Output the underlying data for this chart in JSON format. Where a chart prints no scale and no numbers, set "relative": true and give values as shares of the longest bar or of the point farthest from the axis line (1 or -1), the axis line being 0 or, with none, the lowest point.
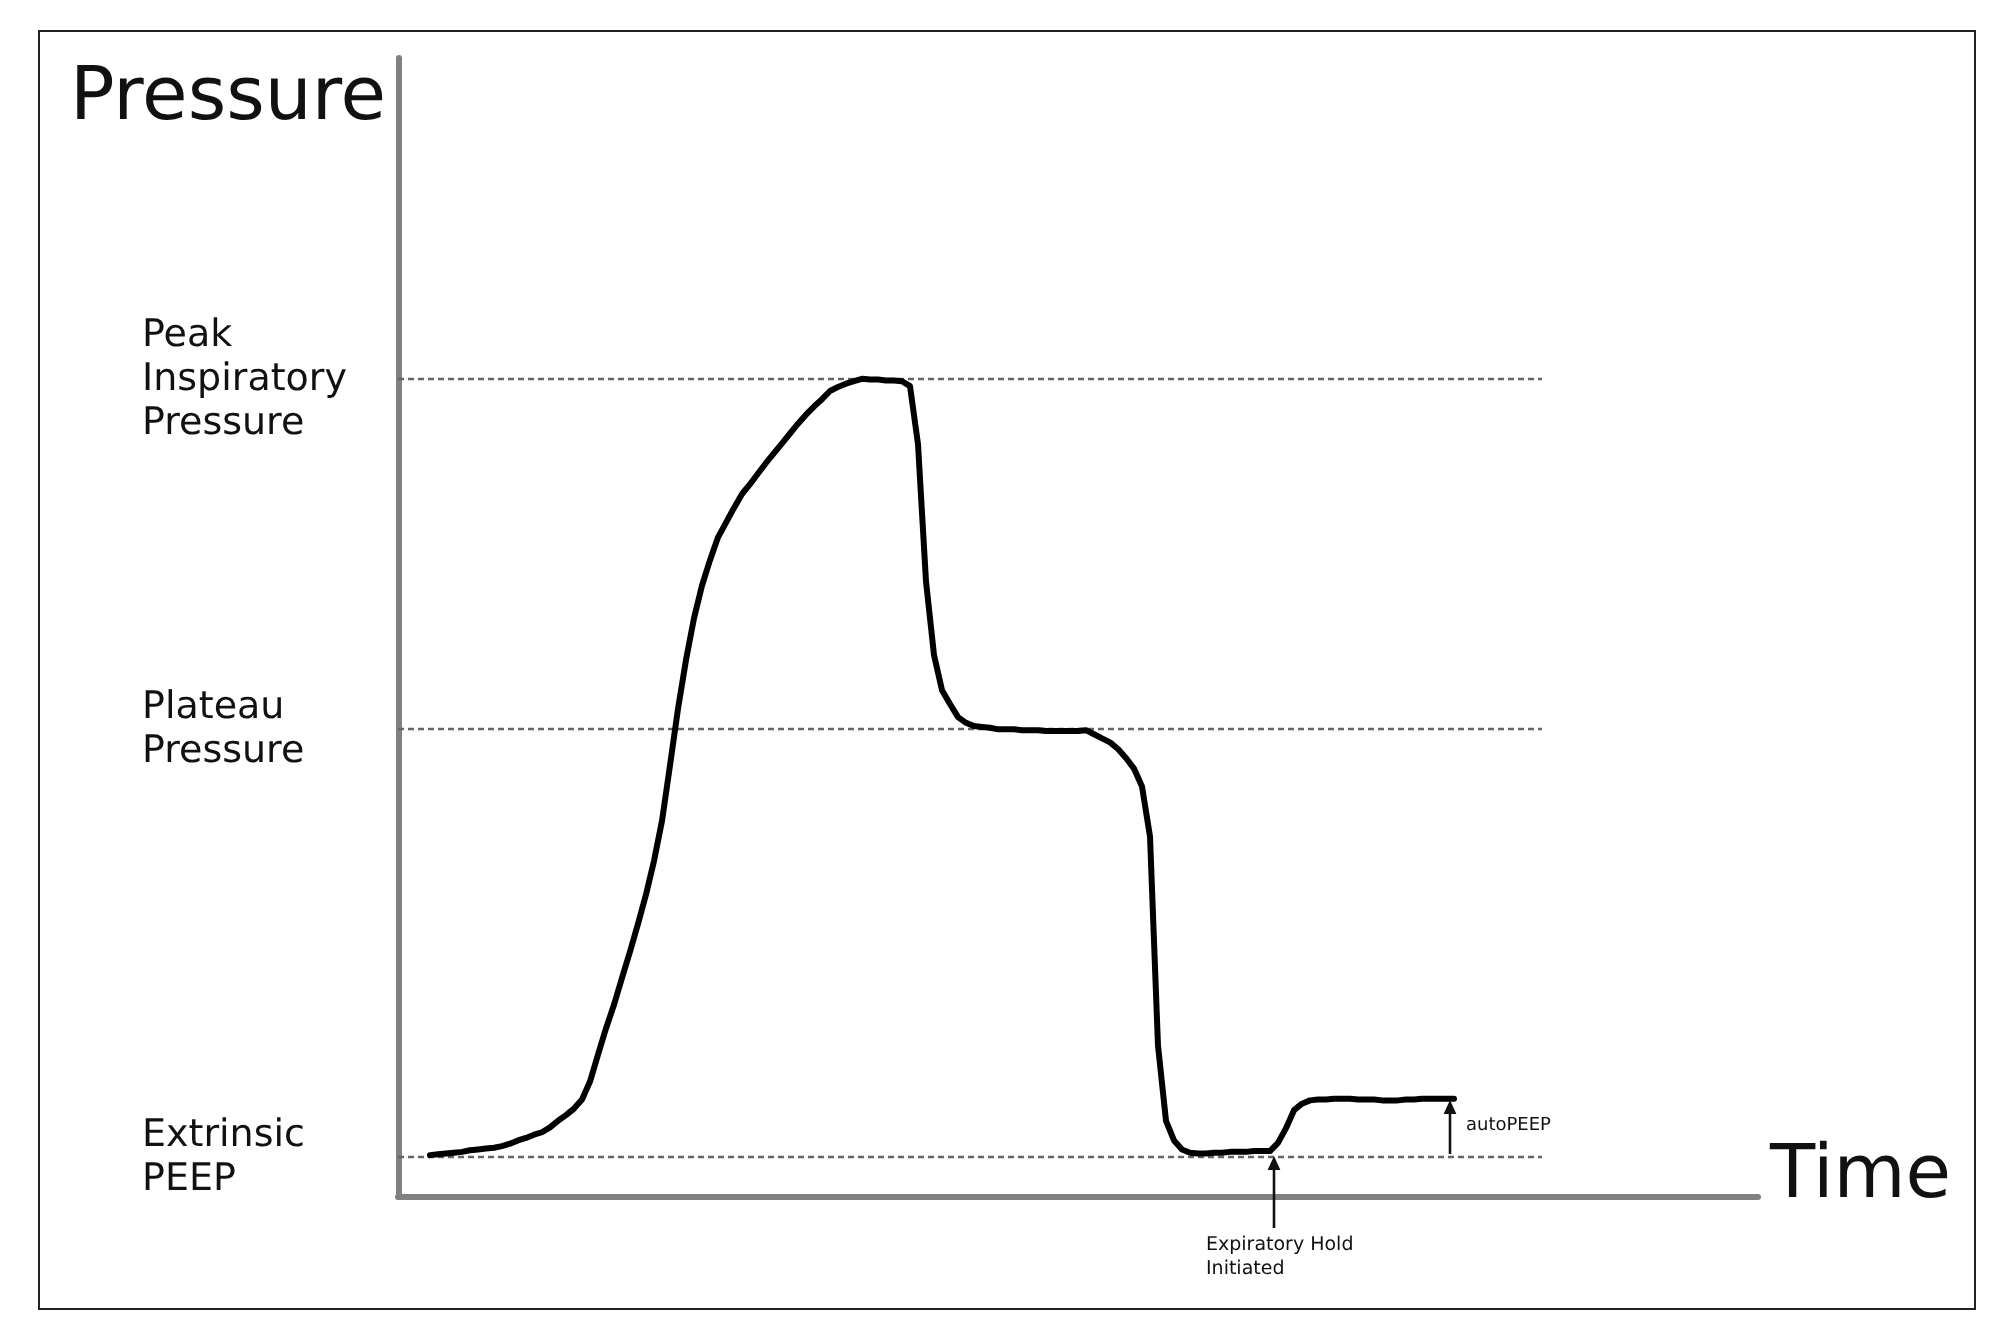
{
  "chart_data": {
    "type": "line",
    "relative": true,
    "xlabel": "Time",
    "ylabel": "Pressure",
    "marker": "none",
    "categories": [
      null,
      null,
      null,
      null,
      null,
      null,
      null,
      null,
      null,
      null,
      null,
      null,
      null,
      null,
      null,
      null,
      null,
      null,
      null,
      null,
      null,
      null,
      null,
      null,
      null,
      null,
      null,
      null,
      null,
      null,
      null,
      null,
      null,
      null,
      null,
      null,
      null,
      null,
      null,
      null,
      null,
      null,
      null,
      null,
      null,
      null,
      null,
      null,
      null,
      null,
      null,
      null,
      null,
      null,
      null,
      null,
      null,
      null,
      null,
      null,
      null,
      null,
      null,
      null,
      null,
      null,
      null,
      null,
      null,
      null,
      null,
      null,
      null,
      null,
      null,
      null,
      null,
      null,
      null,
      null,
      null,
      null,
      null,
      null,
      null,
      null,
      null,
      null,
      null,
      null,
      null,
      null,
      null,
      null,
      null,
      null,
      null,
      null,
      null,
      null,
      null,
      null,
      null,
      null,
      null,
      null,
      null,
      null,
      null,
      null,
      null,
      null,
      null,
      null,
      null,
      null,
      null,
      null,
      null,
      null,
      null,
      null,
      null,
      null,
      null,
      null,
      null,
      null,
      null,
      null,
      null,
      null,
      null,
      null,
      null,
      null,
      null,
      null,
      null,
      null,
      null,
      null,
      null,
      null,
      null,
      null,
      null,
      null,
      null,
      null,
      null,
      null,
      null,
      null,
      null,
      null,
      null,
      null,
      null,
      null,
      null,
      null,
      null,
      null,
      null,
      null,
      null,
      null,
      null,
      null,
      null
    ],
    "values": [
      null,
      null,
      null,
      null,
      0.05,
      0.051,
      0.052,
      0.053,
      0.054,
      0.056,
      0.057,
      0.058,
      0.059,
      0.061,
      0.064,
      0.068,
      0.071,
      0.075,
      0.078,
      0.084,
      0.092,
      0.099,
      0.107,
      0.118,
      0.14,
      0.173,
      0.205,
      0.234,
      0.267,
      0.299,
      0.333,
      0.369,
      0.41,
      0.459,
      0.527,
      0.596,
      0.656,
      0.707,
      0.747,
      0.778,
      0.806,
      0.824,
      0.842,
      0.859,
      0.871,
      0.884,
      0.897,
      0.909,
      0.921,
      0.933,
      0.945,
      0.956,
      0.966,
      0.975,
      0.985,
      0.99,
      0.994,
      0.997,
      1,
      0.999,
      0.999,
      0.998,
      0.998,
      0.997,
      0.991,
      0.92,
      0.752,
      0.662,
      0.619,
      0.602,
      0.586,
      0.579,
      0.575,
      0.574,
      0.573,
      0.571,
      0.571,
      0.571,
      0.57,
      0.57,
      0.57,
      0.569,
      0.569,
      0.569,
      0.569,
      0.569,
      0.57,
      0.565,
      0.56,
      0.555,
      0.547,
      0.536,
      0.523,
      0.501,
      0.44,
      0.184,
      0.092,
      0.068,
      0.057,
      0.053,
      0.052,
      0.052,
      0.053,
      0.053,
      0.054,
      0.054,
      0.054,
      0.055,
      0.055,
      0.055,
      0.065,
      0.083,
      0.105,
      0.113,
      0.117,
      0.118,
      0.118,
      0.119,
      0.119,
      0.119,
      0.118,
      0.118,
      0.118,
      0.117,
      0.117,
      0.117,
      0.118,
      0.118,
      0.119,
      0.119,
      0.119,
      0.119,
      0.119,
      null,
      null,
      null,
      null,
      null,
      null,
      null,
      null,
      null,
      null,
      null,
      null,
      null,
      null,
      null,
      null,
      null,
      null,
      null,
      null,
      null,
      null,
      null,
      null,
      null,
      null,
      null,
      null,
      null,
      null,
      null,
      null,
      null,
      null,
      null,
      null,
      null,
      null
    ],
    "color": "#000000",
    "ref_lines": [
      {
        "axis": "y",
        "value": 1,
        "label": "Peak Inspiratory Pressure",
        "color": "#666666",
        "line_style": "dashed"
      },
      {
        "axis": "y",
        "value": 0.572,
        "label": "Plateau Pressure",
        "color": "#666666",
        "line_style": "dashed"
      },
      {
        "axis": "y",
        "value": 0.049,
        "label": "Extrinsic PEEP",
        "color": "#666666",
        "line_style": "dashed"
      }
    ],
    "annotations": [
      "Expiratory Hold Initiated",
      "autoPEEP"
    ]
  }
}
